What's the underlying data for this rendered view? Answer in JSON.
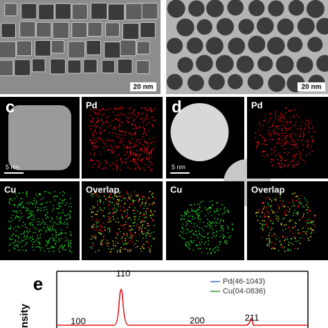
{
  "panels": {
    "a": {
      "scale_bar": "20 nm"
    },
    "b": {
      "scale_bar": "20 nm"
    },
    "c": {
      "label": "c",
      "scale_bar": "5 nm",
      "maps": [
        "Pd",
        "Cu",
        "Overlap"
      ]
    },
    "d": {
      "label": "d",
      "scale_bar": "5 nm",
      "maps": [
        "Pd",
        "Cu",
        "Overlap"
      ]
    }
  },
  "plot": {
    "label": "e",
    "y_axis_label": "nsity",
    "peaks": [
      "110",
      "100",
      "200",
      "211"
    ],
    "legend": [
      {
        "name": "Pd(46-1043)",
        "color": "#3a6fd8"
      },
      {
        "name": "Cu(04-0836)",
        "color": "#2a9a2a"
      }
    ]
  }
}
